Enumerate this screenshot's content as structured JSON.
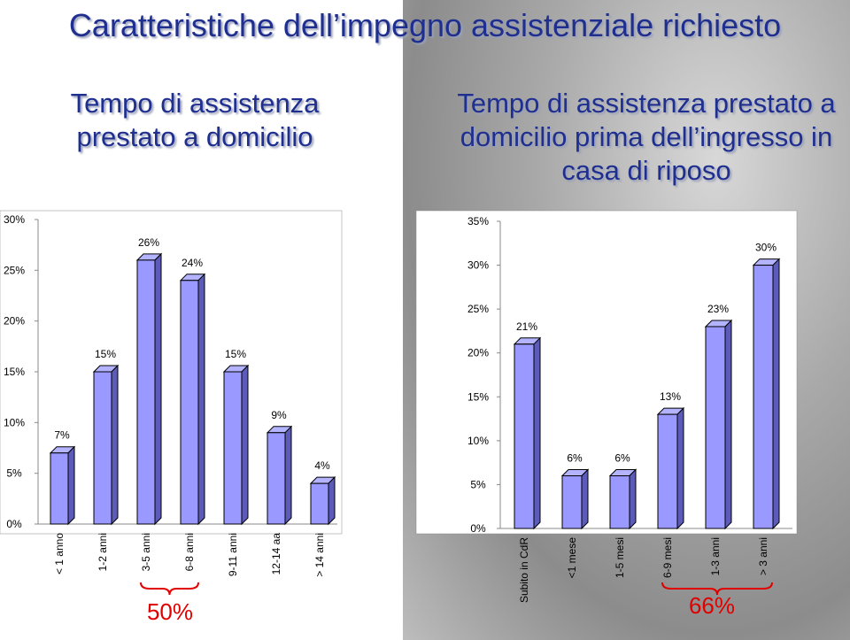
{
  "header": {
    "title": "Caratteristiche dell’impegno assistenziale richiesto"
  },
  "chart_data": [
    {
      "type": "bar",
      "title": "Tempo di assistenza prestato a domicilio",
      "categories": [
        "< 1 anno",
        "1-2 anni",
        "3-5 anni",
        "6-8 anni",
        "9-11 anni",
        "12-14 aa",
        "> 14 anni"
      ],
      "values": [
        7,
        15,
        26,
        24,
        15,
        9,
        4
      ],
      "value_labels": [
        "7%",
        "15%",
        "26%",
        "24%",
        "15%",
        "9%",
        "4%"
      ],
      "color": "#9999ff",
      "ylim": [
        0,
        30
      ],
      "yticks": [
        {
          "value": 0,
          "label": "0%"
        },
        {
          "value": 5,
          "label": "5%"
        },
        {
          "value": 10,
          "label": "10%"
        },
        {
          "value": 15,
          "label": "15%"
        },
        {
          "value": 20,
          "label": "20%"
        },
        {
          "value": 25,
          "label": "25%"
        },
        {
          "value": 30,
          "label": "30%"
        }
      ],
      "annotations": [
        {
          "text": "50%"
        }
      ]
    },
    {
      "type": "bar",
      "title": "Tempo di assistenza prestato a domicilio prima dell’ingresso in casa di riposo",
      "categories": [
        "Subito in CdR",
        "<1 mese",
        "1-5 mesi",
        "6-9 mesi",
        "1-3 anni",
        "> 3 anni"
      ],
      "values": [
        21,
        6,
        6,
        13,
        23,
        30
      ],
      "value_labels": [
        "21%",
        "6%",
        "6%",
        "13%",
        "23%",
        "30%"
      ],
      "color": "#9999ff",
      "ylim": [
        0,
        35
      ],
      "yticks": [
        {
          "value": 0,
          "label": "0%"
        },
        {
          "value": 5,
          "label": "5%"
        },
        {
          "value": 10,
          "label": "10%"
        },
        {
          "value": 15,
          "label": "15%"
        },
        {
          "value": 20,
          "label": "20%"
        },
        {
          "value": 25,
          "label": "25%"
        },
        {
          "value": 30,
          "label": "30%"
        },
        {
          "value": 35,
          "label": "35%"
        }
      ],
      "annotations": [
        {
          "text": "66%"
        }
      ]
    }
  ]
}
